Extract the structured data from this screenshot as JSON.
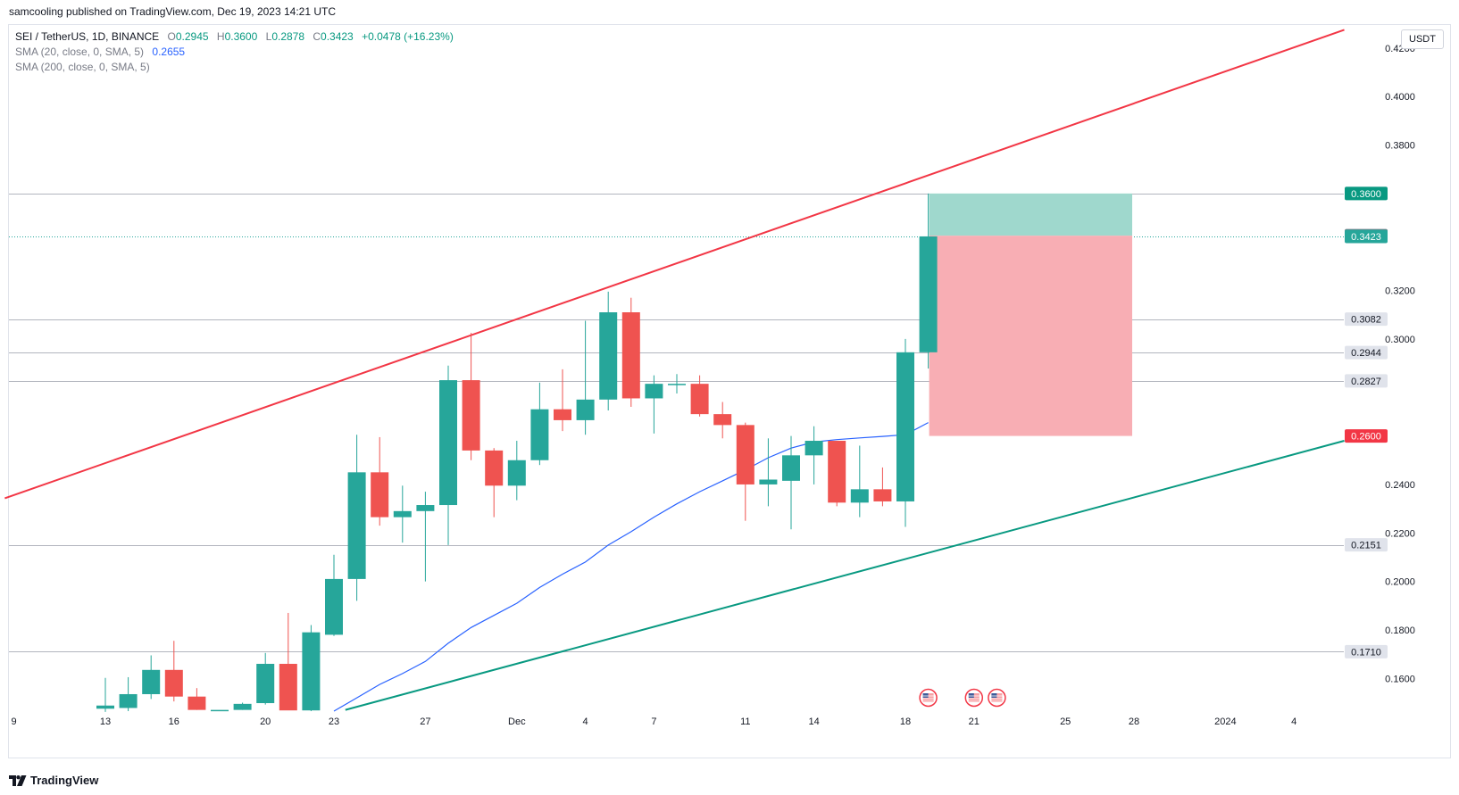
{
  "header": {
    "published": "samcooling published on TradingView.com, Dec 19, 2023 14:21 UTC"
  },
  "legend": {
    "symbol": "SEI / TetherUS, 1D, BINANCE",
    "o_label": "O",
    "o": "0.2945",
    "h_label": "H",
    "h": "0.3600",
    "l_label": "L",
    "l": "0.2878",
    "c_label": "C",
    "c": "0.3423",
    "change": "+0.0478 (+16.23%)",
    "sma20_label": "SMA (20, close, 0, SMA, 5)",
    "sma20_value": "0.2655",
    "sma200_label": "SMA (200, close, 0, SMA, 5)"
  },
  "currency": "USDT",
  "footer": {
    "brand": "TradingView"
  },
  "colors": {
    "up": "#26a69a",
    "down": "#ef5350",
    "sma": "#2962ff",
    "resistance": "#f23645",
    "support": "#089981",
    "tp_zone": "#9fd8cd",
    "sl_zone": "#f8aeb4"
  },
  "chart_data": {
    "type": "candlestick",
    "y_range": [
      0.1465,
      0.4295
    ],
    "y_ticks": [
      "0.4200",
      "0.4000",
      "0.3800",
      "0.3200",
      "0.3000",
      "0.2400",
      "0.2200",
      "0.2000",
      "0.1800",
      "0.1600"
    ],
    "x_ticks": [
      {
        "label": "9",
        "i": -4
      },
      {
        "label": "13",
        "i": 0
      },
      {
        "label": "16",
        "i": 3
      },
      {
        "label": "20",
        "i": 7
      },
      {
        "label": "23",
        "i": 10
      },
      {
        "label": "27",
        "i": 14
      },
      {
        "label": "Dec",
        "i": 18
      },
      {
        "label": "4",
        "i": 21
      },
      {
        "label": "7",
        "i": 24
      },
      {
        "label": "11",
        "i": 28
      },
      {
        "label": "14",
        "i": 31
      },
      {
        "label": "18",
        "i": 35
      },
      {
        "label": "21",
        "i": 38
      },
      {
        "label": "25",
        "i": 42
      },
      {
        "label": "28",
        "i": 45
      },
      {
        "label": "2024",
        "i": 49
      },
      {
        "label": "4",
        "i": 52
      }
    ],
    "candles": [
      {
        "d": "Nov 13",
        "o": 0.1475,
        "h": 0.1602,
        "l": 0.1462,
        "c": 0.1488
      },
      {
        "d": "Nov 14",
        "o": 0.1478,
        "h": 0.1605,
        "l": 0.1465,
        "c": 0.1535
      },
      {
        "d": "Nov 15",
        "o": 0.1535,
        "h": 0.1695,
        "l": 0.1515,
        "c": 0.1635
      },
      {
        "d": "Nov 16",
        "o": 0.1635,
        "h": 0.1755,
        "l": 0.1505,
        "c": 0.1525
      },
      {
        "d": "Nov 17",
        "o": 0.1525,
        "h": 0.156,
        "l": 0.147,
        "c": 0.147
      },
      {
        "d": "Nov 18",
        "o": 0.147,
        "h": 0.147,
        "l": 0.147,
        "c": 0.147
      },
      {
        "d": "Nov 19",
        "o": 0.147,
        "h": 0.15,
        "l": 0.147,
        "c": 0.1495
      },
      {
        "d": "Nov 20",
        "o": 0.1498,
        "h": 0.1705,
        "l": 0.1492,
        "c": 0.166
      },
      {
        "d": "Nov 21",
        "o": 0.166,
        "h": 0.187,
        "l": 0.147,
        "c": 0.1468
      },
      {
        "d": "Nov 22",
        "o": 0.1468,
        "h": 0.182,
        "l": 0.1465,
        "c": 0.179
      },
      {
        "d": "Nov 23",
        "o": 0.178,
        "h": 0.211,
        "l": 0.1775,
        "c": 0.201
      },
      {
        "d": "Nov 24",
        "o": 0.201,
        "h": 0.2605,
        "l": 0.192,
        "c": 0.245
      },
      {
        "d": "Nov 25",
        "o": 0.245,
        "h": 0.2595,
        "l": 0.223,
        "c": 0.2265
      },
      {
        "d": "Nov 26",
        "o": 0.2265,
        "h": 0.2395,
        "l": 0.216,
        "c": 0.229
      },
      {
        "d": "Nov 27",
        "o": 0.229,
        "h": 0.237,
        "l": 0.2,
        "c": 0.2315
      },
      {
        "d": "Nov 28",
        "o": 0.2315,
        "h": 0.289,
        "l": 0.215,
        "c": 0.283
      },
      {
        "d": "Nov 29",
        "o": 0.283,
        "h": 0.3025,
        "l": 0.25,
        "c": 0.254
      },
      {
        "d": "Nov 30",
        "o": 0.254,
        "h": 0.255,
        "l": 0.2265,
        "c": 0.2395
      },
      {
        "d": "Dec 1",
        "o": 0.2395,
        "h": 0.258,
        "l": 0.2335,
        "c": 0.25
      },
      {
        "d": "Dec 2",
        "o": 0.25,
        "h": 0.282,
        "l": 0.248,
        "c": 0.271
      },
      {
        "d": "Dec 3",
        "o": 0.271,
        "h": 0.2875,
        "l": 0.262,
        "c": 0.2665
      },
      {
        "d": "Dec 4",
        "o": 0.2665,
        "h": 0.3075,
        "l": 0.2605,
        "c": 0.275
      },
      {
        "d": "Dec 5",
        "o": 0.275,
        "h": 0.3195,
        "l": 0.2705,
        "c": 0.311
      },
      {
        "d": "Dec 6",
        "o": 0.311,
        "h": 0.317,
        "l": 0.272,
        "c": 0.2755
      },
      {
        "d": "Dec 7",
        "o": 0.2755,
        "h": 0.285,
        "l": 0.261,
        "c": 0.2815
      },
      {
        "d": "Dec 8",
        "o": 0.2815,
        "h": 0.2855,
        "l": 0.2775,
        "c": 0.2815
      },
      {
        "d": "Dec 9",
        "o": 0.2815,
        "h": 0.285,
        "l": 0.268,
        "c": 0.269
      },
      {
        "d": "Dec 10",
        "o": 0.269,
        "h": 0.274,
        "l": 0.259,
        "c": 0.2645
      },
      {
        "d": "Dec 11",
        "o": 0.2645,
        "h": 0.2655,
        "l": 0.225,
        "c": 0.24
      },
      {
        "d": "Dec 12",
        "o": 0.24,
        "h": 0.259,
        "l": 0.231,
        "c": 0.242
      },
      {
        "d": "Dec 13",
        "o": 0.2415,
        "h": 0.26,
        "l": 0.2215,
        "c": 0.252
      },
      {
        "d": "Dec 14",
        "o": 0.252,
        "h": 0.264,
        "l": 0.24,
        "c": 0.258
      },
      {
        "d": "Dec 15",
        "o": 0.258,
        "h": 0.258,
        "l": 0.231,
        "c": 0.2325
      },
      {
        "d": "Dec 16",
        "o": 0.2325,
        "h": 0.256,
        "l": 0.2265,
        "c": 0.238
      },
      {
        "d": "Dec 17",
        "o": 0.238,
        "h": 0.247,
        "l": 0.231,
        "c": 0.233
      },
      {
        "d": "Dec 18",
        "o": 0.233,
        "h": 0.3,
        "l": 0.2225,
        "c": 0.2945
      },
      {
        "d": "Dec 19",
        "o": 0.2945,
        "h": 0.36,
        "l": 0.2878,
        "c": 0.3423
      }
    ],
    "sma20": [
      {
        "i": 10,
        "v": 0.1465
      },
      {
        "i": 11,
        "v": 0.152
      },
      {
        "i": 12,
        "v": 0.1575
      },
      {
        "i": 13,
        "v": 0.162
      },
      {
        "i": 14,
        "v": 0.167
      },
      {
        "i": 15,
        "v": 0.1745
      },
      {
        "i": 16,
        "v": 0.181
      },
      {
        "i": 17,
        "v": 0.186
      },
      {
        "i": 18,
        "v": 0.191
      },
      {
        "i": 19,
        "v": 0.1975
      },
      {
        "i": 20,
        "v": 0.203
      },
      {
        "i": 21,
        "v": 0.208
      },
      {
        "i": 22,
        "v": 0.215
      },
      {
        "i": 23,
        "v": 0.2205
      },
      {
        "i": 24,
        "v": 0.2265
      },
      {
        "i": 25,
        "v": 0.232
      },
      {
        "i": 26,
        "v": 0.237
      },
      {
        "i": 27,
        "v": 0.2415
      },
      {
        "i": 28,
        "v": 0.246
      },
      {
        "i": 29,
        "v": 0.251
      },
      {
        "i": 30,
        "v": 0.255
      },
      {
        "i": 31,
        "v": 0.2575
      },
      {
        "i": 32,
        "v": 0.2585
      },
      {
        "i": 33,
        "v": 0.2592
      },
      {
        "i": 34,
        "v": 0.2598
      },
      {
        "i": 35,
        "v": 0.2605
      },
      {
        "i": 36,
        "v": 0.2655
      }
    ],
    "trendlines": [
      {
        "name": "resistance",
        "p1": {
          "i": -4.4,
          "v": 0.2343
        },
        "p2": {
          "i": 54.2,
          "v": 0.4275
        }
      },
      {
        "name": "support",
        "p1": {
          "i": 10.5,
          "v": 0.147
        },
        "p2": {
          "i": 54.2,
          "v": 0.258
        }
      }
    ],
    "horizontal_levels": [
      0.3601,
      0.3082,
      0.2944,
      0.2827,
      0.2151,
      0.171
    ],
    "last_price_line": 0.3423,
    "position": {
      "entry": 0.3426,
      "target": 0.36,
      "stop": 0.26,
      "from_i": 36,
      "to_i": 45
    },
    "price_labels": [
      {
        "value": "0.3601",
        "bg": "#e0e3eb",
        "fg": "#131722"
      },
      {
        "value": "0.3600",
        "bg": "#089981",
        "fg": "#ffffff"
      },
      {
        "value": "0.3426",
        "bg": "#787b86",
        "fg": "#ffffff"
      },
      {
        "value": "0.3423",
        "bg": "#26a69a",
        "fg": "#ffffff"
      },
      {
        "value": "0.3082",
        "bg": "#e0e3eb",
        "fg": "#131722"
      },
      {
        "value": "0.2944",
        "bg": "#e0e3eb",
        "fg": "#131722"
      },
      {
        "value": "0.2827",
        "bg": "#e0e3eb",
        "fg": "#131722"
      },
      {
        "value": "0.2600",
        "bg": "#f23645",
        "fg": "#ffffff"
      },
      {
        "value": "0.2151",
        "bg": "#e0e3eb",
        "fg": "#131722"
      },
      {
        "value": "0.1710",
        "bg": "#e0e3eb",
        "fg": "#131722"
      }
    ],
    "event_markers": [
      {
        "i": 36
      },
      {
        "i": 38
      },
      {
        "i": 39
      }
    ]
  }
}
